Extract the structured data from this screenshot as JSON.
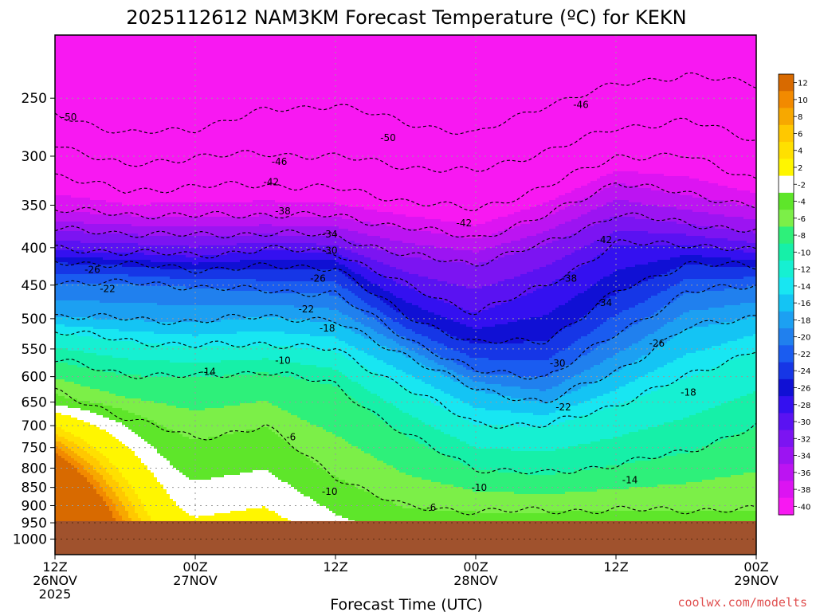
{
  "chart_data": {
    "type": "heatmap",
    "title": "2025112612 NAM3KM Forecast Temperature (ºC) for KEKN",
    "xlabel": "Forecast Time (UTC)",
    "ylabel": "",
    "credit": "coolwx.com/modelts",
    "y_scale": "log-pressure",
    "ylim": [
      1050,
      205
    ],
    "y_ticks": [
      250,
      300,
      350,
      400,
      450,
      500,
      550,
      600,
      650,
      700,
      750,
      800,
      850,
      900,
      950,
      1000
    ],
    "x_ticks": [
      {
        "hour": 0,
        "line1": "12Z",
        "line2": "26NOV",
        "line3": "2025"
      },
      {
        "hour": 12,
        "line1": "00Z",
        "line2": "27NOV",
        "line3": ""
      },
      {
        "hour": 24,
        "line1": "12Z",
        "line2": "",
        "line3": ""
      },
      {
        "hour": 36,
        "line1": "00Z",
        "line2": "28NOV",
        "line3": ""
      },
      {
        "hour": 48,
        "line1": "12Z",
        "line2": "",
        "line3": ""
      },
      {
        "hour": 60,
        "line1": "00Z",
        "line2": "29NOV",
        "line3": ""
      }
    ],
    "xlim": [
      0,
      60
    ],
    "grid": true,
    "ground_pressure": 945,
    "colorbar": {
      "labels": [
        "12",
        "10",
        "8",
        "6",
        "4",
        "2",
        "-2",
        "-4",
        "-6",
        "-8",
        "-10",
        "-12",
        "-14",
        "-16",
        "-18",
        "-20",
        "-22",
        "-24",
        "-26",
        "-28",
        "-30",
        "-32",
        "-34",
        "-36",
        "-38",
        "-40"
      ],
      "colors": [
        "#d86a00",
        "#f28a00",
        "#f7a800",
        "#ffc800",
        "#ffe000",
        "#fff600",
        "#ffffff",
        "#5ee62a",
        "#7cef48",
        "#2ef07a",
        "#16f0a8",
        "#16f0d2",
        "#18e6f2",
        "#14c4f4",
        "#1ca0f2",
        "#2080ee",
        "#1a5cf0",
        "#1636e6",
        "#1010d4",
        "#3410f0",
        "#5a12f2",
        "#7c14f2",
        "#9c14f2",
        "#bc14f2",
        "#dc14f2",
        "#f818f2"
      ]
    },
    "isotherm_profiles": {
      "hours": [
        0,
        6,
        12,
        18,
        24,
        30,
        36,
        42,
        48,
        54,
        60
      ],
      "temps": [
        -50,
        -46,
        -42,
        -38,
        -34,
        -30,
        -26,
        -22,
        -18,
        -14,
        -10,
        -6
      ],
      "pressures": [
        [
          262,
          280,
          275,
          260,
          255,
          270,
          280,
          255,
          240,
          232,
          240
        ],
        [
          288,
          310,
          300,
          298,
          300,
          310,
          315,
          295,
          275,
          268,
          285
        ],
        [
          318,
          335,
          330,
          328,
          332,
          345,
          355,
          330,
          300,
          300,
          322
        ],
        [
          355,
          360,
          362,
          360,
          362,
          375,
          388,
          362,
          325,
          338,
          350
        ],
        [
          378,
          382,
          385,
          382,
          385,
          410,
          420,
          395,
          360,
          370,
          380
        ],
        [
          402,
          405,
          410,
          402,
          405,
          450,
          490,
          450,
          395,
          395,
          405
        ],
        [
          418,
          422,
          428,
          425,
          425,
          495,
          540,
          535,
          460,
          420,
          425
        ],
        [
          445,
          447,
          452,
          458,
          462,
          530,
          590,
          600,
          525,
          460,
          450
        ],
        [
          495,
          500,
          505,
          495,
          505,
          560,
          625,
          650,
          590,
          515,
          495
        ],
        [
          520,
          535,
          545,
          540,
          552,
          620,
          695,
          700,
          655,
          600,
          550
        ],
        [
          570,
          595,
          600,
          590,
          615,
          720,
          800,
          815,
          790,
          760,
          700
        ],
        [
          630,
          680,
          730,
          700,
          820,
          905,
          915,
          915,
          912,
          912,
          912
        ]
      ]
    },
    "contour_labels": [
      {
        "text": "-50",
        "hour": 1.2,
        "p": 265
      },
      {
        "text": "-50",
        "hour": 28.5,
        "p": 283
      },
      {
        "text": "-46",
        "hour": 19.2,
        "p": 305
      },
      {
        "text": "-46",
        "hour": 45,
        "p": 255
      },
      {
        "text": "-42",
        "hour": 18.5,
        "p": 325
      },
      {
        "text": "-42",
        "hour": 35,
        "p": 370
      },
      {
        "text": "-42",
        "hour": 47,
        "p": 390
      },
      {
        "text": "-38",
        "hour": 19.5,
        "p": 356
      },
      {
        "text": "-38",
        "hour": 44,
        "p": 440
      },
      {
        "text": "-34",
        "hour": 23.5,
        "p": 383
      },
      {
        "text": "-34",
        "hour": 47,
        "p": 475
      },
      {
        "text": "-30",
        "hour": 23.5,
        "p": 403
      },
      {
        "text": "-30",
        "hour": 43,
        "p": 575
      },
      {
        "text": "-26",
        "hour": 3.2,
        "p": 428
      },
      {
        "text": "-26",
        "hour": 22.5,
        "p": 440
      },
      {
        "text": "-26",
        "hour": 51.5,
        "p": 540
      },
      {
        "text": "-22",
        "hour": 4.5,
        "p": 455
      },
      {
        "text": "-22",
        "hour": 21.5,
        "p": 485
      },
      {
        "text": "-22",
        "hour": 43.5,
        "p": 660
      },
      {
        "text": "-18",
        "hour": 23.3,
        "p": 515
      },
      {
        "text": "-18",
        "hour": 54.2,
        "p": 630
      },
      {
        "text": "-14",
        "hour": 13.1,
        "p": 590
      },
      {
        "text": "-14",
        "hour": 49.2,
        "p": 830
      },
      {
        "text": "-10",
        "hour": 19.5,
        "p": 570
      },
      {
        "text": "-10",
        "hour": 23.5,
        "p": 860
      },
      {
        "text": "-10",
        "hour": 36.3,
        "p": 850
      },
      {
        "text": "-6",
        "hour": 20.2,
        "p": 725
      },
      {
        "text": "-6",
        "hour": 32.2,
        "p": 905
      }
    ]
  }
}
